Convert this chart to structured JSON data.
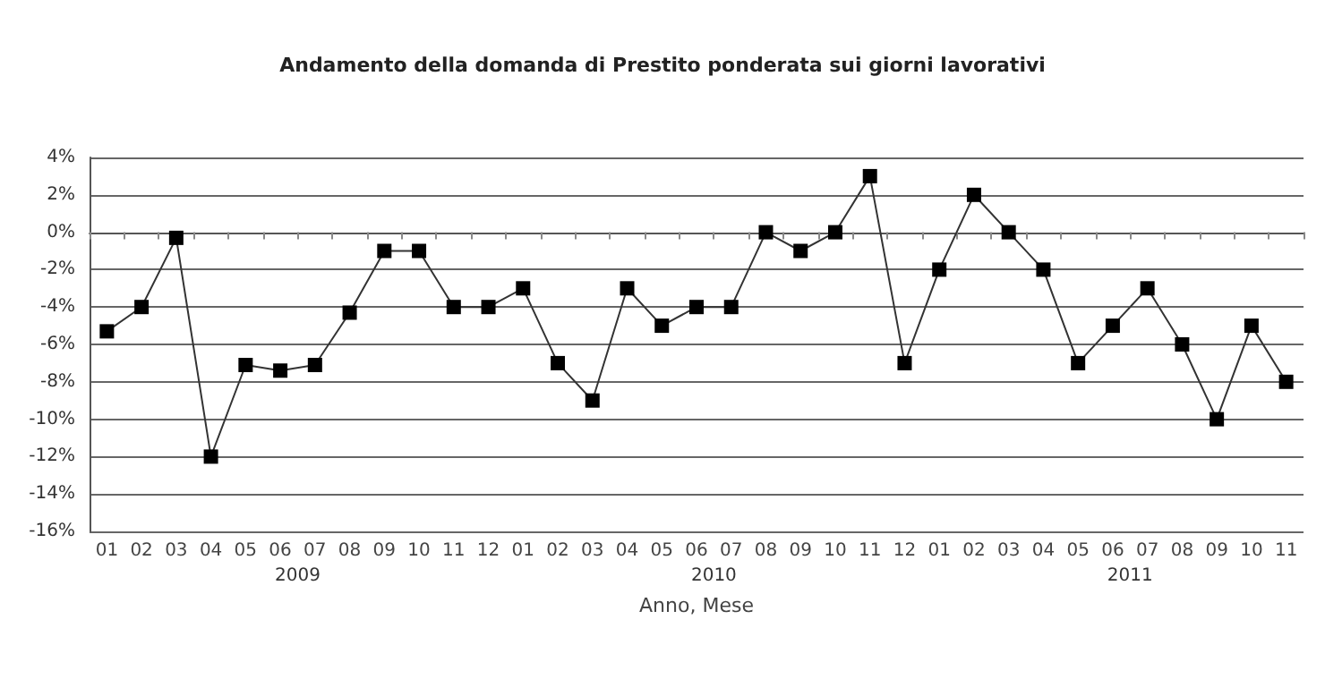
{
  "chart_data": {
    "type": "line",
    "title": "Andamento della domanda di Prestito ponderata sui giorni lavorativi",
    "xlabel": "Anno, Mese",
    "categories": [
      "01",
      "02",
      "03",
      "04",
      "05",
      "06",
      "07",
      "08",
      "09",
      "10",
      "11",
      "12",
      "01",
      "02",
      "03",
      "04",
      "05",
      "06",
      "07",
      "08",
      "09",
      "10",
      "11",
      "12",
      "01",
      "02",
      "03",
      "04",
      "05",
      "06",
      "07",
      "08",
      "09",
      "10",
      "11"
    ],
    "series": [
      {
        "color": "#000000",
        "values": [
          -5.3,
          -4,
          -0.3,
          -12,
          -7.1,
          -7.4,
          -7.1,
          -4.3,
          -1,
          -1,
          -4,
          -4,
          -3,
          -7,
          -9,
          -3,
          -5,
          -4,
          -4,
          0,
          -1,
          0,
          3,
          -7,
          -2,
          2,
          0,
          -2,
          -7,
          -5,
          -3,
          -6,
          -10,
          -5,
          -8
        ]
      }
    ],
    "annotations": [
      "2009",
      "2010",
      "2011"
    ],
    "ylim": [
      -16,
      4
    ],
    "yticks": [
      {
        "value": -16,
        "label": "-16%"
      },
      {
        "value": -14,
        "label": "-14%"
      },
      {
        "value": -12,
        "label": "-12%"
      },
      {
        "value": -10,
        "label": "-10%"
      },
      {
        "value": -8,
        "label": "-8%"
      },
      {
        "value": -6,
        "label": "-6%"
      },
      {
        "value": -4,
        "label": "-4%"
      },
      {
        "value": -2,
        "label": "-2%"
      },
      {
        "value": 0,
        "label": "0%"
      },
      {
        "value": 2,
        "label": "2%"
      },
      {
        "value": 4,
        "label": "4%"
      }
    ],
    "grid": "y",
    "marker": "square",
    "line_style": "solid"
  }
}
